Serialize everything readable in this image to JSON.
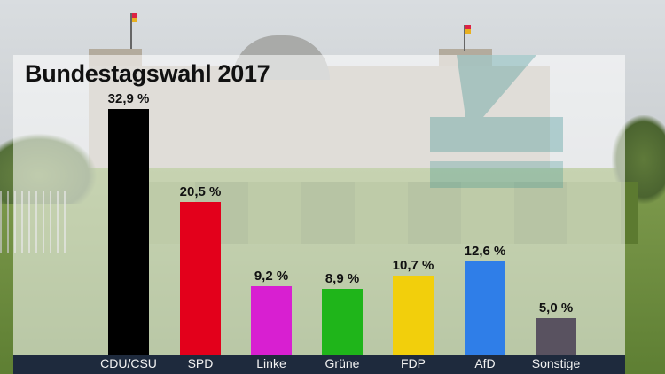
{
  "title": "Bundestagswahl 2017",
  "colors": {
    "panel": "rgba(255,255,255,0.56)",
    "axis_strip": "#1e2a3d",
    "logo": "#2e8a8a"
  },
  "logo_icon": "n-tv-logo-icon",
  "chart_data": {
    "type": "bar",
    "title": "Bundestagswahl 2017",
    "xlabel": "",
    "ylabel": "",
    "ylim": [
      0,
      33
    ],
    "grid": false,
    "legend": "none",
    "categories": [
      "CDU/CSU",
      "SPD",
      "Linke",
      "Grüne",
      "FDP",
      "AfD",
      "Sonstige"
    ],
    "values": [
      32.9,
      20.5,
      9.2,
      8.9,
      10.7,
      12.6,
      5.0
    ],
    "labels": [
      "32,9 %",
      "20,5 %",
      "9,2 %",
      "8,9 %",
      "10,7 %",
      "12,6 %",
      "5,0 %"
    ],
    "colors": [
      "#000000",
      "#e3001b",
      "#d81fd1",
      "#1fb51a",
      "#f2cf0c",
      "#2f7ee8",
      "#595260"
    ]
  }
}
